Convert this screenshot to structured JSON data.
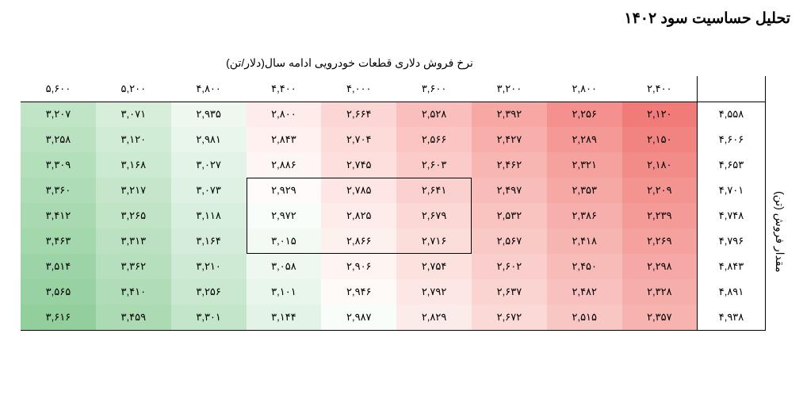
{
  "page": {
    "title": "تحلیل حساسیت سود ۱۴۰۲"
  },
  "heatmap": {
    "type": "heatmap",
    "x_axis_title": "نرخ فروش دلاری قطعات خودرویی ادامه سال(دلار/تن)",
    "y_axis_title": "مقدار فروش (تن)",
    "col_headers": [
      "۲,۴۰۰",
      "۲,۸۰۰",
      "۳,۲۰۰",
      "۳,۶۰۰",
      "۴,۰۰۰",
      "۴,۴۰۰",
      "۴,۸۰۰",
      "۵,۲۰۰",
      "۵,۶۰۰"
    ],
    "row_headers": [
      "۴,۵۵۸",
      "۴,۶۰۶",
      "۴,۶۵۳",
      "۴,۷۰۱",
      "۴,۷۴۸",
      "۴,۷۹۶",
      "۴,۸۴۳",
      "۴,۸۹۱",
      "۴,۹۳۸"
    ],
    "cells": [
      [
        {
          "v": "۲,۱۲۰",
          "c": "#f07b78"
        },
        {
          "v": "۲,۲۵۶",
          "c": "#f4918e"
        },
        {
          "v": "۲,۳۹۲",
          "c": "#f7a8a5"
        },
        {
          "v": "۲,۵۲۸",
          "c": "#fabfbc"
        },
        {
          "v": "۲,۶۶۴",
          "c": "#fcd6d4"
        },
        {
          "v": "۲,۸۰۰",
          "c": "#feeceb"
        },
        {
          "v": "۲,۹۳۵",
          "c": "#eef8ef"
        },
        {
          "v": "۳,۰۷۱",
          "c": "#d7eedb"
        },
        {
          "v": "۳,۲۰۷",
          "c": "#c0e4c6"
        }
      ],
      [
        {
          "v": "۲,۱۵۰",
          "c": "#f18481"
        },
        {
          "v": "۲,۲۸۹",
          "c": "#f49996"
        },
        {
          "v": "۲,۴۲۷",
          "c": "#f8afac"
        },
        {
          "v": "۲,۵۶۶",
          "c": "#fac5c2"
        },
        {
          "v": "۲,۷۰۴",
          "c": "#fcdbd9"
        },
        {
          "v": "۲,۸۴۳",
          "c": "#fef1f0"
        },
        {
          "v": "۲,۹۸۱",
          "c": "#e9f6eb"
        },
        {
          "v": "۳,۱۲۰",
          "c": "#d1ecd6"
        },
        {
          "v": "۳,۲۵۸",
          "c": "#bae1c0"
        }
      ],
      [
        {
          "v": "۲,۱۸۰",
          "c": "#f28c89"
        },
        {
          "v": "۲,۳۲۱",
          "c": "#f5a19e"
        },
        {
          "v": "۲,۴۶۲",
          "c": "#f8b6b3"
        },
        {
          "v": "۲,۶۰۳",
          "c": "#facbc9"
        },
        {
          "v": "۲,۷۴۵",
          "c": "#fde0de"
        },
        {
          "v": "۲,۸۸۶",
          "c": "#fef6f5"
        },
        {
          "v": "۳,۰۲۷",
          "c": "#e4f3e7"
        },
        {
          "v": "۳,۱۶۸",
          "c": "#cce9d1"
        },
        {
          "v": "۳,۳۰۹",
          "c": "#b4dfbb"
        }
      ],
      [
        {
          "v": "۲,۲۰۹",
          "c": "#f39491"
        },
        {
          "v": "۲,۳۵۳",
          "c": "#f6a8a5"
        },
        {
          "v": "۲,۴۹۷",
          "c": "#f8bdba"
        },
        {
          "v": "۲,۶۴۱",
          "c": "#fbd1cf"
        },
        {
          "v": "۲,۷۸۵",
          "c": "#fde6e4"
        },
        {
          "v": "۲,۹۲۹",
          "c": "#fefbfa"
        },
        {
          "v": "۳,۰۷۳",
          "c": "#def1e2"
        },
        {
          "v": "۳,۲۱۷",
          "c": "#c6e6cc"
        },
        {
          "v": "۳,۳۶۰",
          "c": "#aedcb6"
        }
      ],
      [
        {
          "v": "۲,۲۳۹",
          "c": "#f49b98"
        },
        {
          "v": "۲,۳۸۶",
          "c": "#f6afac"
        },
        {
          "v": "۲,۵۳۲",
          "c": "#f9c3c0"
        },
        {
          "v": "۲,۶۷۹",
          "c": "#fbd7d5"
        },
        {
          "v": "۲,۸۲۵",
          "c": "#fdece9"
        },
        {
          "v": "۲,۹۷۲",
          "c": "#f9fdf9"
        },
        {
          "v": "۳,۱۱۸",
          "c": "#d9efdd"
        },
        {
          "v": "۳,۲۶۵",
          "c": "#c1e4c7"
        },
        {
          "v": "۳,۴۱۲",
          "c": "#a9d9b1"
        }
      ],
      [
        {
          "v": "۲,۲۶۹",
          "c": "#f5a29f"
        },
        {
          "v": "۲,۴۱۸",
          "c": "#f7b5b2"
        },
        {
          "v": "۲,۵۶۷",
          "c": "#f9c9c6"
        },
        {
          "v": "۲,۷۱۶",
          "c": "#fbddda"
        },
        {
          "v": "۲,۸۶۶",
          "c": "#fdf1ee"
        },
        {
          "v": "۳,۰۱۵",
          "c": "#f3faf4"
        },
        {
          "v": "۳,۱۶۴",
          "c": "#d4ecd9"
        },
        {
          "v": "۳,۳۱۳",
          "c": "#bbe1c2"
        },
        {
          "v": "۳,۴۶۳",
          "c": "#a3d7ac"
        }
      ],
      [
        {
          "v": "۲,۲۹۸",
          "c": "#f5a8a5"
        },
        {
          "v": "۲,۴۵۰",
          "c": "#f7bbb8"
        },
        {
          "v": "۲,۶۰۲",
          "c": "#f9cecc"
        },
        {
          "v": "۲,۷۵۴",
          "c": "#fce2df"
        },
        {
          "v": "۲,۹۰۶",
          "c": "#fef5f3"
        },
        {
          "v": "۳,۰۵۸",
          "c": "#eef8f0"
        },
        {
          "v": "۳,۲۱۰",
          "c": "#ceead4"
        },
        {
          "v": "۳,۳۶۲",
          "c": "#b6dfbd"
        },
        {
          "v": "۳,۵۱۴",
          "c": "#9dd4a7"
        }
      ],
      [
        {
          "v": "۲,۳۲۸",
          "c": "#f6aeab"
        },
        {
          "v": "۲,۴۸۲",
          "c": "#f8c0be"
        },
        {
          "v": "۲,۶۳۷",
          "c": "#fad4d1"
        },
        {
          "v": "۲,۷۹۲",
          "c": "#fce7e4"
        },
        {
          "v": "۲,۹۴۶",
          "c": "#fefaf8"
        },
        {
          "v": "۳,۱۰۱",
          "c": "#e9f6eb"
        },
        {
          "v": "۳,۲۵۶",
          "c": "#c9e8cf"
        },
        {
          "v": "۳,۴۱۰",
          "c": "#b0dcb8"
        },
        {
          "v": "۳,۵۶۵",
          "c": "#98d2a2"
        }
      ],
      [
        {
          "v": "۲,۳۵۷",
          "c": "#f6b3b0"
        },
        {
          "v": "۲,۵۱۵",
          "c": "#f8c6c3"
        },
        {
          "v": "۲,۶۷۲",
          "c": "#fad9d6"
        },
        {
          "v": "۲,۸۲۹",
          "c": "#fcece9"
        },
        {
          "v": "۲,۹۸۷",
          "c": "#f9fdf9"
        },
        {
          "v": "۳,۱۴۴",
          "c": "#e3f3e7"
        },
        {
          "v": "۳,۳۰۱",
          "c": "#c3e5ca"
        },
        {
          "v": "۳,۴۵۹",
          "c": "#abdab3"
        },
        {
          "v": "۳,۶۱۶",
          "c": "#92cf9d"
        }
      ]
    ],
    "highlight_box": {
      "row_start": 3,
      "row_end": 5,
      "col_start": 3,
      "col_end": 5
    },
    "cell_fontsize": 13,
    "header_fontsize": 13,
    "title_fontsize": 19,
    "axis_title_fontsize": 14,
    "border_color": "#000000",
    "background_color": "#ffffff"
  }
}
